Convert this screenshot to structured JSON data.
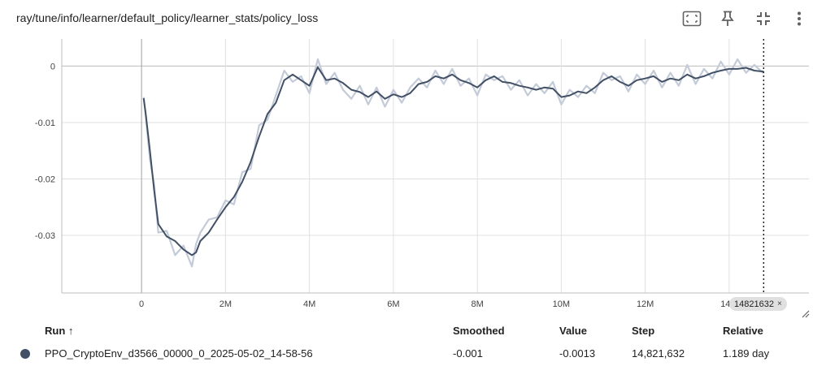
{
  "card": {
    "title": "ray/tune/info/learner/default_policy/learner_stats/policy_loss"
  },
  "toolbar": {
    "icons": [
      "fullscreen-icon",
      "pin-icon",
      "fit-domain-icon",
      "more-vert-icon"
    ]
  },
  "step_flag": {
    "label": "14821632",
    "close": "×"
  },
  "table": {
    "headers": {
      "run": "Run ↑",
      "smoothed": "Smoothed",
      "value": "Value",
      "step": "Step",
      "relative": "Relative"
    },
    "rows": [
      {
        "run": "PPO_CryptoEnv_d3566_00000_0_2025-05-02_14-58-56",
        "smoothed": "-0.001",
        "value": "-0.0013",
        "step": "14,821,632",
        "relative": "1.189 day",
        "color": "#425066"
      }
    ]
  },
  "chart_data": {
    "type": "line",
    "title": "ray/tune/info/learner/default_policy/learner_stats/policy_loss",
    "xlabel": "",
    "ylabel": "",
    "xlim": [
      -1900000,
      15900000
    ],
    "ylim": [
      -0.0402,
      0.0048
    ],
    "x_ticks": [
      0,
      2000000,
      4000000,
      6000000,
      8000000,
      10000000,
      12000000,
      14000000
    ],
    "x_tick_labels": [
      "0",
      "2M",
      "4M",
      "6M",
      "8M",
      "10M",
      "12M",
      "14M"
    ],
    "y_ticks": [
      0,
      -0.01,
      -0.02,
      -0.03
    ],
    "y_tick_labels": [
      "0",
      "-0.01",
      "-0.02",
      "-0.03"
    ],
    "grid": true,
    "cursor_step": 14821632,
    "series": [
      {
        "color": "#425066",
        "raw_color": "#c3cad8",
        "x": [
          50000,
          100000,
          200000,
          300000,
          400000,
          600000,
          800000,
          1000000,
          1200000,
          1300000,
          1400000,
          1600000,
          1800000,
          2000000,
          2200000,
          2400000,
          2600000,
          2800000,
          3000000,
          3200000,
          3400000,
          3600000,
          3800000,
          4000000,
          4200000,
          4400000,
          4600000,
          4800000,
          5000000,
          5200000,
          5400000,
          5600000,
          5800000,
          6000000,
          6200000,
          6400000,
          6600000,
          6800000,
          7000000,
          7200000,
          7400000,
          7600000,
          7800000,
          8000000,
          8200000,
          8400000,
          8600000,
          8800000,
          9000000,
          9200000,
          9400000,
          9600000,
          9800000,
          10000000,
          10200000,
          10400000,
          10600000,
          10800000,
          11000000,
          11200000,
          11400000,
          11600000,
          11800000,
          12000000,
          12200000,
          12400000,
          12600000,
          12800000,
          13000000,
          13200000,
          13400000,
          13600000,
          13800000,
          14000000,
          14200000,
          14400000,
          14600000,
          14821632
        ],
        "smoothed": [
          -0.0057,
          -0.0085,
          -0.015,
          -0.022,
          -0.028,
          -0.0302,
          -0.031,
          -0.0325,
          -0.0335,
          -0.033,
          -0.031,
          -0.0295,
          -0.0272,
          -0.025,
          -0.0232,
          -0.0205,
          -0.017,
          -0.0125,
          -0.0085,
          -0.0065,
          -0.0025,
          -0.0015,
          -0.0025,
          -0.0035,
          -0.0002,
          -0.0025,
          -0.0022,
          -0.003,
          -0.0042,
          -0.0046,
          -0.0055,
          -0.0045,
          -0.0058,
          -0.005,
          -0.0055,
          -0.0048,
          -0.0032,
          -0.0028,
          -0.0018,
          -0.0022,
          -0.0015,
          -0.0025,
          -0.003,
          -0.0038,
          -0.0025,
          -0.0018,
          -0.0028,
          -0.003,
          -0.0035,
          -0.0038,
          -0.0042,
          -0.0038,
          -0.004,
          -0.0055,
          -0.0052,
          -0.0045,
          -0.0048,
          -0.0038,
          -0.0025,
          -0.0018,
          -0.0028,
          -0.0035,
          -0.0025,
          -0.0022,
          -0.0018,
          -0.0028,
          -0.0022,
          -0.0025,
          -0.0015,
          -0.0022,
          -0.0018,
          -0.0012,
          -0.0008,
          -0.0005,
          -0.0005,
          -0.0003,
          -0.0008,
          -0.001
        ],
        "raw": [
          -0.0055,
          -0.009,
          -0.0165,
          -0.021,
          -0.0295,
          -0.0292,
          -0.0335,
          -0.0318,
          -0.0355,
          -0.0315,
          -0.0295,
          -0.0272,
          -0.0268,
          -0.0238,
          -0.0245,
          -0.0188,
          -0.0182,
          -0.0105,
          -0.0095,
          -0.0052,
          -0.0008,
          -0.0028,
          -0.0018,
          -0.0048,
          0.0012,
          -0.0032,
          -0.0012,
          -0.0042,
          -0.0058,
          -0.0035,
          -0.0068,
          -0.0038,
          -0.0072,
          -0.0042,
          -0.0065,
          -0.0038,
          -0.0022,
          -0.0038,
          -0.0008,
          -0.0032,
          -0.0005,
          -0.0035,
          -0.0022,
          -0.0052,
          -0.0015,
          -0.0025,
          -0.0018,
          -0.0042,
          -0.0025,
          -0.0052,
          -0.0032,
          -0.0048,
          -0.0028,
          -0.0068,
          -0.0042,
          -0.0055,
          -0.0035,
          -0.0048,
          -0.0012,
          -0.0025,
          -0.0018,
          -0.0045,
          -0.0015,
          -0.0032,
          -0.0008,
          -0.0038,
          -0.0012,
          -0.0035,
          0.0002,
          -0.0032,
          -0.0005,
          -0.0022,
          0.0008,
          -0.0015,
          0.0012,
          -0.0012,
          0.0002,
          -0.0013
        ]
      }
    ]
  }
}
